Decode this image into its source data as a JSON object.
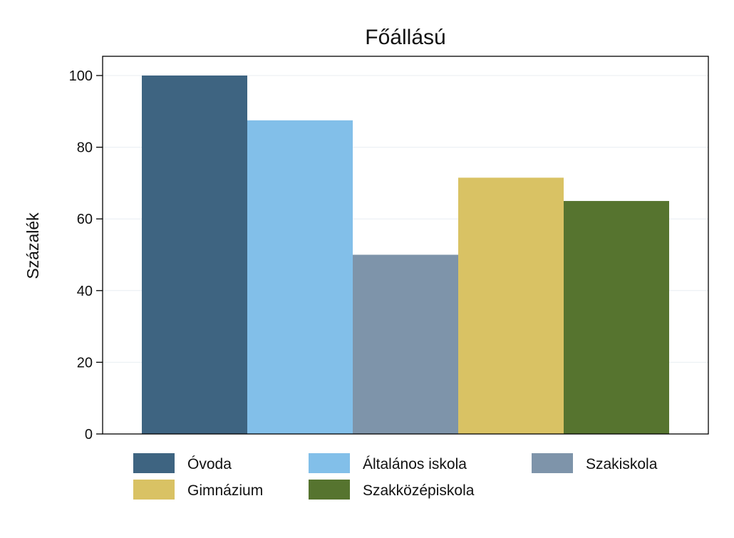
{
  "chart_data": {
    "type": "bar",
    "title": "Főállású",
    "xlabel": "",
    "ylabel": "Százalék",
    "ylim": [
      0,
      105
    ],
    "yticks": [
      0,
      20,
      40,
      60,
      80,
      100
    ],
    "grid": true,
    "legend_position": "bottom",
    "series": [
      {
        "name": "Óvoda",
        "value": 100,
        "color": "#3e6481"
      },
      {
        "name": "Általános iskola",
        "value": 87.5,
        "color": "#82bfe9"
      },
      {
        "name": "Szakiskola",
        "value": 50,
        "color": "#7e94aa"
      },
      {
        "name": "Gimnázium",
        "value": 71.5,
        "color": "#d9c264"
      },
      {
        "name": "Szakközépiskola",
        "value": 65,
        "color": "#56742f"
      }
    ]
  }
}
